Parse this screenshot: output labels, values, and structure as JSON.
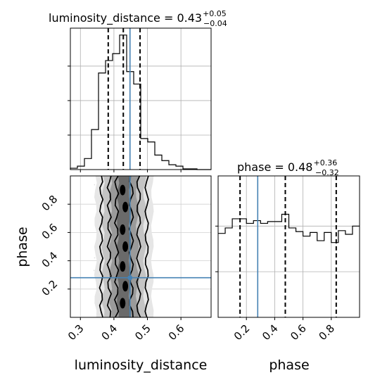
{
  "chart_data": {
    "type": "corner",
    "grid": true,
    "truth_color": "#4682b4",
    "quantile_style": "dashed",
    "parameters": [
      "luminosity_distance",
      "phase"
    ],
    "panels": [
      {
        "kind": "histogram",
        "parameter": "luminosity_distance",
        "title_prefix": "luminosity_distance = ",
        "median": "0.43",
        "plus": "+0.05",
        "minus": "−0.04",
        "xlim": [
          0.27,
          0.69
        ],
        "bin_edges": [
          0.27,
          0.291,
          0.312,
          0.333,
          0.354,
          0.375,
          0.396,
          0.417,
          0.438,
          0.459,
          0.48,
          0.501,
          0.522,
          0.543,
          0.564,
          0.585,
          0.606,
          0.627,
          0.648,
          0.669,
          0.69
        ],
        "counts": [
          2,
          5,
          16,
          58,
          140,
          158,
          168,
          195,
          142,
          124,
          45,
          40,
          21,
          13,
          7,
          5,
          1,
          1,
          0,
          0
        ],
        "ylim": [
          0,
          205
        ],
        "quantiles": [
          0.383,
          0.428,
          0.478
        ],
        "truth": 0.448
      },
      {
        "kind": "histogram",
        "parameter": "phase",
        "title_prefix": "phase = ",
        "median": "0.48",
        "plus": "+0.36",
        "minus": "−0.32",
        "xlim": [
          0.0,
          1.0
        ],
        "bin_edges": [
          0.0,
          0.05,
          0.1,
          0.15,
          0.2,
          0.25,
          0.3,
          0.35,
          0.4,
          0.45,
          0.5,
          0.55,
          0.6,
          0.65,
          0.7,
          0.75,
          0.8,
          0.85,
          0.9,
          0.95,
          1.0
        ],
        "counts": [
          92,
          98,
          108,
          108,
          103,
          106,
          103,
          105,
          105,
          113,
          98,
          94,
          89,
          93,
          84,
          93,
          82,
          95,
          91,
          100
        ],
        "ylim": [
          0,
          155
        ],
        "quantiles": [
          0.155,
          0.475,
          0.835
        ],
        "truth": 0.28
      },
      {
        "kind": "2d-density",
        "x": "luminosity_distance",
        "y": "phase",
        "xlim": [
          0.27,
          0.69
        ],
        "ylim": [
          0.0,
          1.0
        ],
        "truth": [
          0.448,
          0.28
        ],
        "x_ticks": [
          "0.3",
          "0.4",
          "0.5",
          "0.6"
        ],
        "y_ticks": [
          "0.2",
          "0.4",
          "0.6",
          "0.8"
        ]
      }
    ],
    "xlabel_left": "luminosity_distance",
    "xlabel_right": "phase",
    "ylabel": "phase",
    "phase_x_ticks": [
      "0.2",
      "0.4",
      "0.6",
      "0.8"
    ]
  }
}
